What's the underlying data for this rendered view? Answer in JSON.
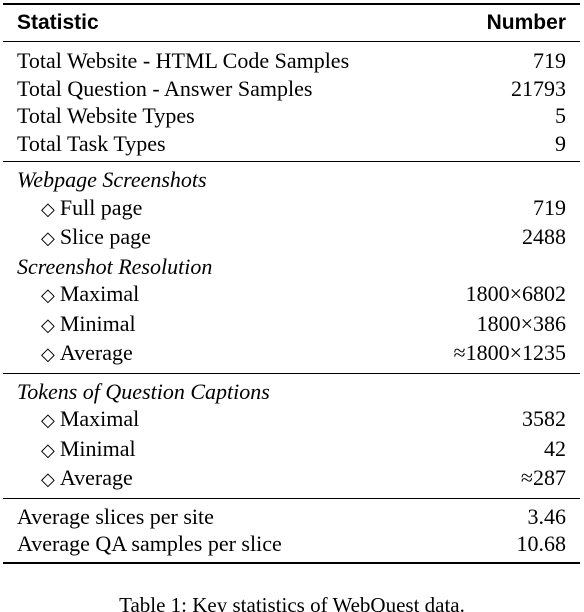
{
  "table": {
    "header": {
      "statistic": "Statistic",
      "number": "Number"
    },
    "groups": [
      {
        "rows": [
          {
            "label": "Total Website - HTML Code Samples",
            "value": "719"
          },
          {
            "label": "Total Question - Answer Samples",
            "value": "21793"
          },
          {
            "label": "Total Website Types",
            "value": "5"
          },
          {
            "label": "Total Task Types",
            "value": "9"
          }
        ]
      },
      {
        "sections": [
          {
            "title": "Webpage Screenshots",
            "rows": [
              {
                "label": "Full page",
                "value": "719"
              },
              {
                "label": "Slice page",
                "value": "2488"
              }
            ]
          },
          {
            "title": "Screenshot Resolution",
            "rows": [
              {
                "label": "Maximal",
                "value": "1800×6802"
              },
              {
                "label": "Minimal",
                "value": "1800×386"
              },
              {
                "label": "Average",
                "value": "≈1800×1235"
              }
            ]
          }
        ]
      },
      {
        "sections": [
          {
            "title": "Tokens of Question Captions",
            "rows": [
              {
                "label": "Maximal",
                "value": "3582"
              },
              {
                "label": "Minimal",
                "value": "42"
              },
              {
                "label": "Average",
                "value": "≈287"
              }
            ]
          }
        ]
      },
      {
        "rows": [
          {
            "label": "Average slices per site",
            "value": "3.46"
          },
          {
            "label": "Average QA samples per slice",
            "value": "10.68"
          }
        ]
      }
    ],
    "diamond_symbol": "◇"
  },
  "caption": "Table 1: Key statistics of WebQuest data."
}
